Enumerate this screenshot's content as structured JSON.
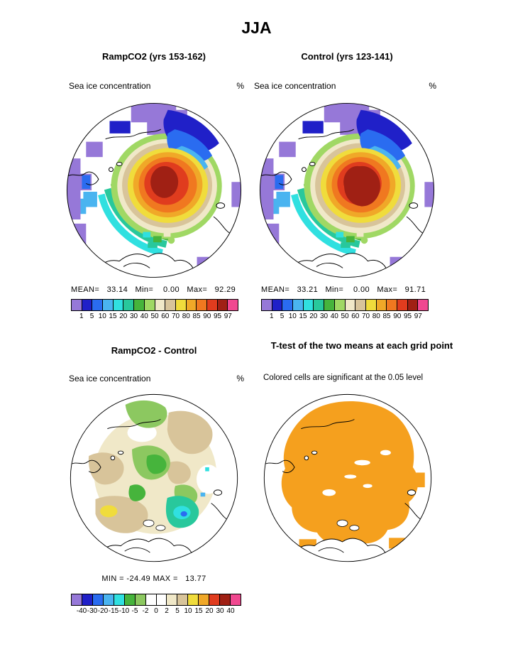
{
  "title": "JJA",
  "panels": {
    "ramp": {
      "title": "RampCO2 (yrs 153-162)",
      "subtitle": "Sea ice concentration",
      "unit": "%",
      "stats": "MEAN=   33.14   Min=    0.00   Max=   92.29"
    },
    "control": {
      "title": "Control (yrs 123-141)",
      "subtitle": "Sea ice concentration",
      "unit": "%",
      "stats": "MEAN=   33.21   Min=    0.00   Max=   91.71"
    },
    "diff": {
      "title": "RampCO2 - Control",
      "subtitle": "Sea ice concentration",
      "unit": "%",
      "stats": "MIN = -24.49 MAX =   13.77"
    },
    "ttest": {
      "title": "T-test of the two means at each grid point",
      "subtitle": "Colored cells are significant at the 0.05 level"
    }
  },
  "colorbars": {
    "concentration": {
      "labels": [
        "1",
        "5",
        "10",
        "15",
        "20",
        "30",
        "40",
        "50",
        "60",
        "70",
        "80",
        "85",
        "90",
        "95",
        "97"
      ],
      "colors": [
        "#9678d8",
        "#2020c8",
        "#2a6cf0",
        "#4ab4f0",
        "#30e0e0",
        "#28c89c",
        "#46b43c",
        "#a0d864",
        "#f0e8c8",
        "#d8c49a",
        "#f0dc3c",
        "#f0a828",
        "#f07820",
        "#e03c1e",
        "#a02014",
        "#f04890"
      ]
    },
    "difference": {
      "labels": [
        "-40",
        "-30",
        "-20",
        "-15",
        "-10",
        "-5",
        "-2",
        "0",
        "2",
        "5",
        "10",
        "15",
        "20",
        "30",
        "40"
      ],
      "colors": [
        "#9678d8",
        "#2020c8",
        "#2a6cf0",
        "#4ab4f0",
        "#30e0e0",
        "#46b43c",
        "#8cc860",
        "#ffffff",
        "#ffffff",
        "#f0e8c8",
        "#d8c49a",
        "#f0dc3c",
        "#f0a828",
        "#e03c1e",
        "#a02014",
        "#f04890"
      ]
    }
  },
  "chart_data": [
    {
      "type": "heatmap",
      "panel": "top-left",
      "title": "RampCO2 (yrs 153-162)",
      "variable": "Sea ice concentration",
      "unit": "%",
      "projection": "north-polar-stereographic",
      "mean": 33.14,
      "min": 0.0,
      "max": 92.29,
      "contour_levels": [
        1,
        5,
        10,
        15,
        20,
        30,
        40,
        50,
        60,
        70,
        80,
        85,
        90,
        95,
        97
      ],
      "palette": [
        "#9678d8",
        "#2020c8",
        "#2a6cf0",
        "#4ab4f0",
        "#30e0e0",
        "#28c89c",
        "#46b43c",
        "#a0d864",
        "#f0e8c8",
        "#d8c49a",
        "#f0dc3c",
        "#f0a828",
        "#f07820",
        "#e03c1e",
        "#a02014",
        "#f04890"
      ]
    },
    {
      "type": "heatmap",
      "panel": "top-right",
      "title": "Control (yrs 123-141)",
      "variable": "Sea ice concentration",
      "unit": "%",
      "projection": "north-polar-stereographic",
      "mean": 33.21,
      "min": 0.0,
      "max": 91.71,
      "contour_levels": [
        1,
        5,
        10,
        15,
        20,
        30,
        40,
        50,
        60,
        70,
        80,
        85,
        90,
        95,
        97
      ],
      "palette": [
        "#9678d8",
        "#2020c8",
        "#2a6cf0",
        "#4ab4f0",
        "#30e0e0",
        "#28c89c",
        "#46b43c",
        "#a0d864",
        "#f0e8c8",
        "#d8c49a",
        "#f0dc3c",
        "#f0a828",
        "#f07820",
        "#e03c1e",
        "#a02014",
        "#f04890"
      ]
    },
    {
      "type": "heatmap",
      "panel": "bottom-left",
      "title": "RampCO2 - Control",
      "variable": "Sea ice concentration difference",
      "unit": "%",
      "projection": "north-polar-stereographic",
      "min": -24.49,
      "max": 13.77,
      "contour_levels": [
        -40,
        -30,
        -20,
        -15,
        -10,
        -5,
        -2,
        0,
        2,
        5,
        10,
        15,
        20,
        30,
        40
      ],
      "palette": [
        "#9678d8",
        "#2020c8",
        "#2a6cf0",
        "#4ab4f0",
        "#30e0e0",
        "#46b43c",
        "#8cc860",
        "#ffffff",
        "#ffffff",
        "#f0e8c8",
        "#d8c49a",
        "#f0dc3c",
        "#f0a828",
        "#e03c1e",
        "#a02014",
        "#f04890"
      ]
    },
    {
      "type": "heatmap",
      "panel": "bottom-right",
      "title": "T-test of the two means at each grid point",
      "note": "Colored cells are significant at the 0.05 level",
      "significance_level": 0.05,
      "significant_color": "#f5a01e"
    }
  ]
}
